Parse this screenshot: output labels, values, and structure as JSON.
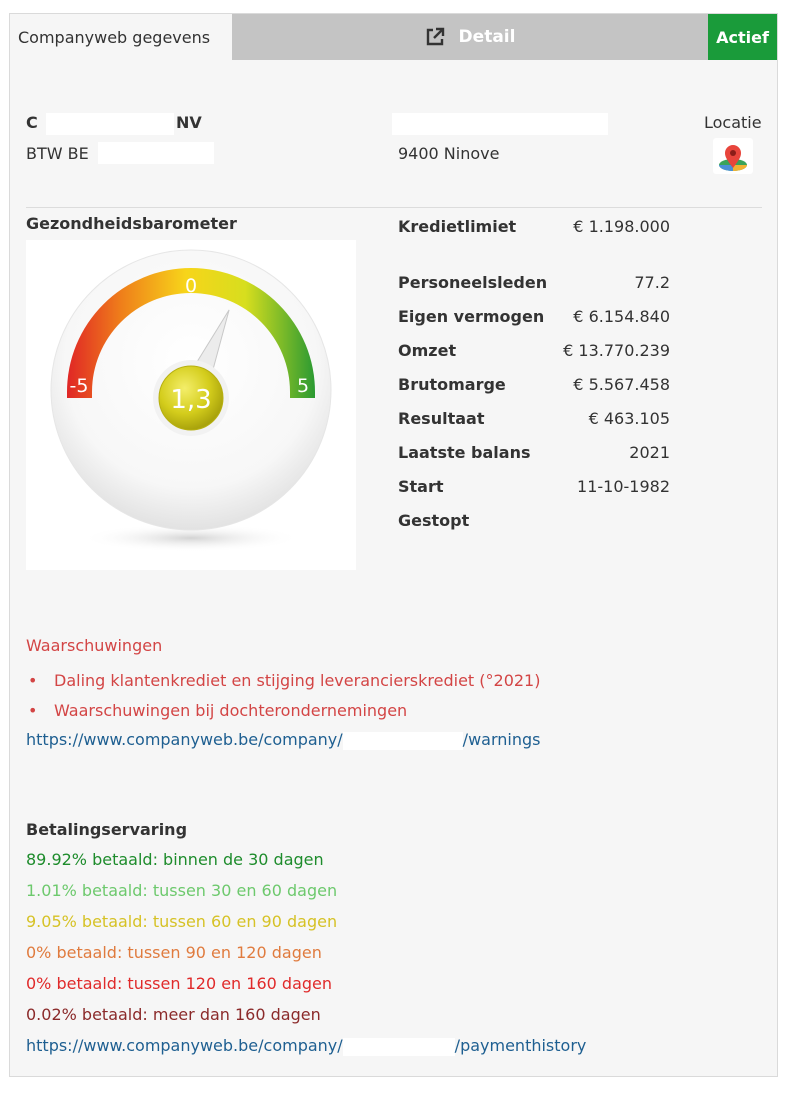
{
  "header": {
    "title": "Companyweb gegevens",
    "detail_label": "Detail",
    "status_label": "Actief"
  },
  "company": {
    "name_prefix": "C",
    "name_suffix": "NV",
    "vat_label": "BTW BE",
    "city": "9400 Ninove",
    "location_label": "Locatie"
  },
  "gauge": {
    "title": "Gezondheidsbarometer",
    "value_label": "1,3",
    "value": 1.3,
    "min_label": "-5",
    "mid_label": "0",
    "max_label": "5",
    "min": -5,
    "max": 5
  },
  "financials": [
    {
      "label": "Kredietlimiet",
      "value": "€ 1.198.000"
    },
    {
      "label": "Personeelsleden",
      "value": "77.2"
    },
    {
      "label": "Eigen vermogen",
      "value": "€ 6.154.840"
    },
    {
      "label": "Omzet",
      "value": "€ 13.770.239"
    },
    {
      "label": "Brutomarge",
      "value": "€ 5.567.458"
    },
    {
      "label": "Resultaat",
      "value": "€ 463.105"
    },
    {
      "label": "Laatste balans",
      "value": "2021"
    },
    {
      "label": "Start",
      "value": "11-10-1982"
    },
    {
      "label": "Gestopt",
      "value": ""
    }
  ],
  "warnings": {
    "title": "Waarschuwingen",
    "items": [
      "Daling klantenkrediet en stijging leverancierskrediet (°2021)",
      "Waarschuwingen bij dochterondernemingen"
    ],
    "link_prefix": "https://www.companyweb.be/company/",
    "link_suffix": "/warnings"
  },
  "payments": {
    "title": "Betalingservaring",
    "items": [
      {
        "text": "89.92% betaald: binnen de 30 dagen",
        "color": "#1e8c2c"
      },
      {
        "text": "1.01% betaald: tussen 30 en 60 dagen",
        "color": "#6dc96d"
      },
      {
        "text": "9.05% betaald: tussen 60 en 90 dagen",
        "color": "#d6c226"
      },
      {
        "text": "0% betaald: tussen 90 en 120 dagen",
        "color": "#e07b3e"
      },
      {
        "text": "0% betaald: tussen 120 en 160 dagen",
        "color": "#e02a2a"
      },
      {
        "text": "0.02% betaald: meer dan 160 dagen",
        "color": "#8b2a2a"
      }
    ],
    "link_prefix": "https://www.companyweb.be/company/",
    "link_suffix": "/paymenthistory"
  }
}
